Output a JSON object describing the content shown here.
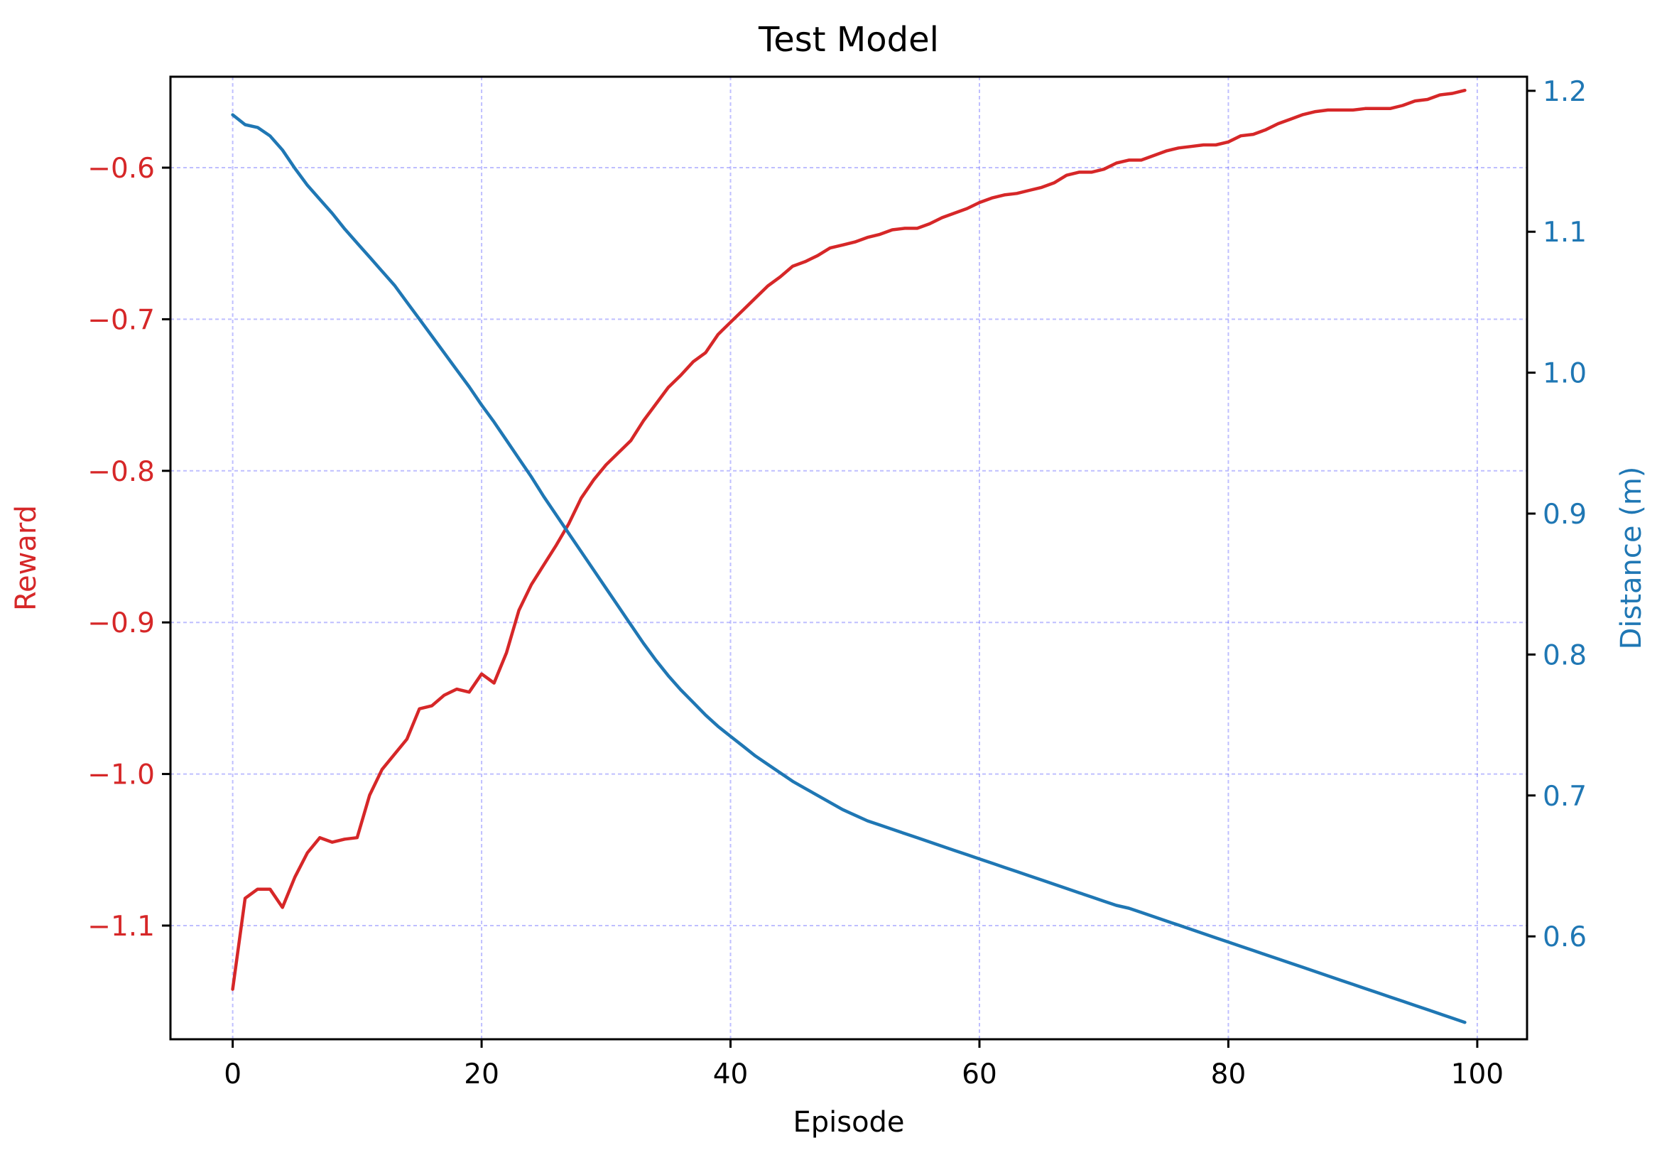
{
  "chart_data": {
    "type": "line",
    "title": "Test Model",
    "xlabel": "Episode",
    "xlim": [
      -5,
      104
    ],
    "x_ticks": [
      0,
      20,
      40,
      60,
      80,
      100
    ],
    "grid": true,
    "grid_color": "#0000ff",
    "left_axis": {
      "label": "Reward",
      "color": "#d62728",
      "ylim": [
        -1.175,
        -0.54
      ],
      "ticks": [
        -1.1,
        -1.0,
        -0.9,
        -0.8,
        -0.7,
        -0.6
      ],
      "tick_labels": [
        "−1.1",
        "−1.0",
        "−0.9",
        "−0.8",
        "−0.7",
        "−0.6"
      ]
    },
    "right_axis": {
      "label": "Distance (m)",
      "color": "#1f77b4",
      "ylim": [
        0.527,
        1.21
      ],
      "ticks": [
        0.6,
        0.7,
        0.8,
        0.9,
        1.0,
        1.1,
        1.2
      ],
      "tick_labels": [
        "0.6",
        "0.7",
        "0.8",
        "0.9",
        "1.0",
        "1.1",
        "1.2"
      ]
    },
    "series": [
      {
        "axis": "left",
        "color": "#d62728",
        "points": [
          [
            0,
            -1.142
          ],
          [
            1,
            -1.082
          ],
          [
            2,
            -1.076
          ],
          [
            3,
            -1.076
          ],
          [
            4,
            -1.088
          ],
          [
            5,
            -1.068
          ],
          [
            6,
            -1.052
          ],
          [
            7,
            -1.042
          ],
          [
            8,
            -1.045
          ],
          [
            9,
            -1.043
          ],
          [
            10,
            -1.042
          ],
          [
            11,
            -1.014
          ],
          [
            12,
            -0.997
          ],
          [
            13,
            -0.987
          ],
          [
            14,
            -0.977
          ],
          [
            15,
            -0.957
          ],
          [
            16,
            -0.955
          ],
          [
            17,
            -0.948
          ],
          [
            18,
            -0.944
          ],
          [
            19,
            -0.946
          ],
          [
            20,
            -0.934
          ],
          [
            21,
            -0.94
          ],
          [
            22,
            -0.92
          ],
          [
            23,
            -0.892
          ],
          [
            24,
            -0.875
          ],
          [
            25,
            -0.862
          ],
          [
            26,
            -0.849
          ],
          [
            27,
            -0.835
          ],
          [
            28,
            -0.818
          ],
          [
            29,
            -0.806
          ],
          [
            30,
            -0.796
          ],
          [
            31,
            -0.788
          ],
          [
            32,
            -0.78
          ],
          [
            33,
            -0.767
          ],
          [
            34,
            -0.756
          ],
          [
            35,
            -0.745
          ],
          [
            36,
            -0.737
          ],
          [
            37,
            -0.728
          ],
          [
            38,
            -0.722
          ],
          [
            39,
            -0.71
          ],
          [
            40,
            -0.702
          ],
          [
            41,
            -0.694
          ],
          [
            42,
            -0.686
          ],
          [
            43,
            -0.678
          ],
          [
            44,
            -0.672
          ],
          [
            45,
            -0.665
          ],
          [
            46,
            -0.662
          ],
          [
            47,
            -0.658
          ],
          [
            48,
            -0.653
          ],
          [
            49,
            -0.651
          ],
          [
            50,
            -0.649
          ],
          [
            51,
            -0.646
          ],
          [
            52,
            -0.644
          ],
          [
            53,
            -0.641
          ],
          [
            54,
            -0.64
          ],
          [
            55,
            -0.64
          ],
          [
            56,
            -0.637
          ],
          [
            57,
            -0.633
          ],
          [
            58,
            -0.63
          ],
          [
            59,
            -0.627
          ],
          [
            60,
            -0.623
          ],
          [
            61,
            -0.62
          ],
          [
            62,
            -0.618
          ],
          [
            63,
            -0.617
          ],
          [
            64,
            -0.615
          ],
          [
            65,
            -0.613
          ],
          [
            66,
            -0.61
          ],
          [
            67,
            -0.605
          ],
          [
            68,
            -0.603
          ],
          [
            69,
            -0.603
          ],
          [
            70,
            -0.601
          ],
          [
            71,
            -0.597
          ],
          [
            72,
            -0.595
          ],
          [
            73,
            -0.595
          ],
          [
            74,
            -0.592
          ],
          [
            75,
            -0.589
          ],
          [
            76,
            -0.587
          ],
          [
            77,
            -0.586
          ],
          [
            78,
            -0.585
          ],
          [
            79,
            -0.585
          ],
          [
            80,
            -0.583
          ],
          [
            81,
            -0.579
          ],
          [
            82,
            -0.578
          ],
          [
            83,
            -0.575
          ],
          [
            84,
            -0.571
          ],
          [
            85,
            -0.568
          ],
          [
            86,
            -0.565
          ],
          [
            87,
            -0.563
          ],
          [
            88,
            -0.562
          ],
          [
            89,
            -0.562
          ],
          [
            90,
            -0.562
          ],
          [
            91,
            -0.561
          ],
          [
            92,
            -0.561
          ],
          [
            93,
            -0.561
          ],
          [
            94,
            -0.559
          ],
          [
            95,
            -0.556
          ],
          [
            96,
            -0.555
          ],
          [
            97,
            -0.552
          ],
          [
            98,
            -0.551
          ],
          [
            99,
            -0.549
          ]
        ]
      },
      {
        "axis": "right",
        "color": "#1f77b4",
        "points": [
          [
            0,
            1.183
          ],
          [
            1,
            1.176
          ],
          [
            2,
            1.174
          ],
          [
            3,
            1.168
          ],
          [
            4,
            1.158
          ],
          [
            5,
            1.145
          ],
          [
            6,
            1.133
          ],
          [
            7,
            1.123
          ],
          [
            8,
            1.113
          ],
          [
            9,
            1.102
          ],
          [
            10,
            1.092
          ],
          [
            11,
            1.082
          ],
          [
            12,
            1.072
          ],
          [
            13,
            1.062
          ],
          [
            14,
            1.05
          ],
          [
            15,
            1.038
          ],
          [
            16,
            1.026
          ],
          [
            17,
            1.014
          ],
          [
            18,
            1.002
          ],
          [
            19,
            0.99
          ],
          [
            20,
            0.977
          ],
          [
            21,
            0.965
          ],
          [
            22,
            0.952
          ],
          [
            23,
            0.939
          ],
          [
            24,
            0.926
          ],
          [
            25,
            0.912
          ],
          [
            26,
            0.899
          ],
          [
            27,
            0.886
          ],
          [
            28,
            0.873
          ],
          [
            29,
            0.86
          ],
          [
            30,
            0.847
          ],
          [
            31,
            0.834
          ],
          [
            32,
            0.821
          ],
          [
            33,
            0.808
          ],
          [
            34,
            0.796
          ],
          [
            35,
            0.785
          ],
          [
            36,
            0.775
          ],
          [
            37,
            0.766
          ],
          [
            38,
            0.757
          ],
          [
            39,
            0.749
          ],
          [
            40,
            0.742
          ],
          [
            41,
            0.735
          ],
          [
            42,
            0.728
          ],
          [
            43,
            0.722
          ],
          [
            44,
            0.716
          ],
          [
            45,
            0.71
          ],
          [
            46,
            0.705
          ],
          [
            47,
            0.7
          ],
          [
            48,
            0.695
          ],
          [
            49,
            0.69
          ],
          [
            50,
            0.686
          ],
          [
            51,
            0.682
          ],
          [
            52,
            0.679
          ],
          [
            53,
            0.676
          ],
          [
            54,
            0.673
          ],
          [
            55,
            0.67
          ],
          [
            56,
            0.667
          ],
          [
            57,
            0.664
          ],
          [
            58,
            0.661
          ],
          [
            59,
            0.658
          ],
          [
            60,
            0.655
          ],
          [
            61,
            0.652
          ],
          [
            62,
            0.649
          ],
          [
            63,
            0.646
          ],
          [
            64,
            0.643
          ],
          [
            65,
            0.64
          ],
          [
            66,
            0.637
          ],
          [
            67,
            0.634
          ],
          [
            68,
            0.631
          ],
          [
            69,
            0.628
          ],
          [
            70,
            0.625
          ],
          [
            71,
            0.622
          ],
          [
            72,
            0.62
          ],
          [
            73,
            0.617
          ],
          [
            74,
            0.614
          ],
          [
            75,
            0.611
          ],
          [
            76,
            0.608
          ],
          [
            77,
            0.605
          ],
          [
            78,
            0.602
          ],
          [
            79,
            0.599
          ],
          [
            80,
            0.596
          ],
          [
            81,
            0.593
          ],
          [
            82,
            0.59
          ],
          [
            83,
            0.587
          ],
          [
            84,
            0.584
          ],
          [
            85,
            0.581
          ],
          [
            86,
            0.578
          ],
          [
            87,
            0.575
          ],
          [
            88,
            0.572
          ],
          [
            89,
            0.569
          ],
          [
            90,
            0.566
          ],
          [
            91,
            0.563
          ],
          [
            92,
            0.56
          ],
          [
            93,
            0.557
          ],
          [
            94,
            0.554
          ],
          [
            95,
            0.551
          ],
          [
            96,
            0.548
          ],
          [
            97,
            0.545
          ],
          [
            98,
            0.542
          ],
          [
            99,
            0.539
          ]
        ]
      }
    ]
  }
}
